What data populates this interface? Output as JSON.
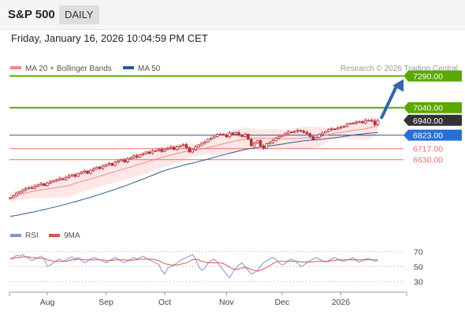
{
  "header": {
    "title": "S&P 500",
    "period_button": "DAILY",
    "datetime": "Friday, January 16, 2026 10:04:59 PM CET"
  },
  "colors": {
    "candle": "#b2333b",
    "ma20": "#f08a8a",
    "band_fill": "#fde3e3",
    "ma50": "#2f5a8e",
    "resistance": "#5aa800",
    "support": "#ef6c6c",
    "current": "#333333",
    "target": "#5aa800",
    "arrow": "#3366aa",
    "rsi": "#7f96d6",
    "rsi_ma": "#e05050",
    "grid_dotted": "#bbbbbb"
  },
  "chart_data": [
    {
      "type": "candlestick",
      "title": "",
      "legend": [
        {
          "label": "MA 20 + Bollinger Bands",
          "color": "#f08a8a"
        },
        {
          "label": "MA 50",
          "color": "#2f5a8e"
        }
      ],
      "copyright": "Research © 2026 Trading Central",
      "x_ticks": [
        "Aug",
        "Sep",
        "Oct",
        "Nov",
        "Dec",
        "2026"
      ],
      "ylim": [
        6150,
        7330
      ],
      "start_close": 6330,
      "closes": [
        6330,
        6345,
        6365,
        6375,
        6390,
        6400,
        6410,
        6405,
        6420,
        6430,
        6440,
        6425,
        6445,
        6455,
        6462,
        6470,
        6480,
        6472,
        6490,
        6500,
        6510,
        6498,
        6520,
        6530,
        6540,
        6522,
        6545,
        6556,
        6570,
        6560,
        6578,
        6590,
        6600,
        6585,
        6610,
        6620,
        6630,
        6612,
        6635,
        6645,
        6660,
        6650,
        6668,
        6675,
        6690,
        6680,
        6698,
        6700,
        6710,
        6695,
        6712,
        6720,
        6728,
        6710,
        6730,
        6740,
        6748,
        6725,
        6690,
        6710,
        6730,
        6745,
        6760,
        6770,
        6790,
        6800,
        6812,
        6830,
        6830,
        6825,
        6810,
        6840,
        6830,
        6842,
        6825,
        6812,
        6830,
        6790,
        6740,
        6760,
        6780,
        6738,
        6720,
        6755,
        6765,
        6780,
        6800,
        6812,
        6822,
        6835,
        6848,
        6846,
        6852,
        6860,
        6855,
        6845,
        6835,
        6812,
        6790,
        6805,
        6828,
        6840,
        6852,
        6866,
        6872,
        6870,
        6880,
        6885,
        6892,
        6910,
        6915,
        6918,
        6925,
        6930,
        6920,
        6938,
        6940,
        6935,
        6905,
        6940
      ],
      "levels": [
        {
          "value": 7290,
          "label": "7290.00",
          "kind": "target"
        },
        {
          "value": 7040,
          "label": "7040.00",
          "kind": "resistance"
        },
        {
          "value": 6940,
          "label": "6940.00",
          "kind": "current"
        },
        {
          "value": 6823,
          "label": "6823.00",
          "kind": "pivot"
        },
        {
          "value": 6717,
          "label": "6717.00",
          "kind": "support"
        },
        {
          "value": 6630,
          "label": "6630.00",
          "kind": "support"
        }
      ],
      "grid": false
    },
    {
      "type": "line",
      "title": "",
      "legend": [
        {
          "label": "RSI",
          "color": "#7f96d6"
        },
        {
          "label": "9MA",
          "color": "#e05050"
        }
      ],
      "ylim": [
        20,
        80
      ],
      "y_ticks": [
        70,
        50,
        30
      ],
      "rsi": [
        60,
        62,
        65,
        64,
        66,
        63,
        61,
        58,
        60,
        62,
        64,
        60,
        50,
        52,
        55,
        58,
        60,
        57,
        59,
        61,
        63,
        60,
        62,
        58,
        55,
        57,
        60,
        62,
        61,
        59,
        57,
        55,
        58,
        60,
        62,
        60,
        57,
        55,
        58,
        60,
        62,
        60,
        62,
        64,
        61,
        59,
        57,
        55,
        53,
        45,
        40,
        48,
        50,
        52,
        55,
        58,
        60,
        62,
        64,
        66,
        60,
        50,
        45,
        48,
        55,
        58,
        60,
        56,
        50,
        45,
        40,
        35,
        42,
        48,
        52,
        55,
        50,
        45,
        40,
        42,
        45,
        50,
        55,
        58,
        60,
        62,
        60,
        55,
        52,
        54,
        58,
        60,
        58,
        55,
        50,
        52,
        55,
        58,
        60,
        62,
        60,
        58,
        56,
        58,
        60,
        62,
        60,
        58,
        57,
        59,
        60,
        62,
        58,
        56,
        58,
        60,
        61,
        59,
        57,
        58
      ],
      "rsi_ma": [
        60,
        61,
        62,
        62,
        63,
        63,
        63,
        62,
        62,
        61,
        61,
        61,
        59,
        58,
        57,
        57,
        57,
        57,
        57,
        58,
        59,
        59,
        60,
        60,
        59,
        59,
        59,
        59,
        59,
        59,
        59,
        58,
        58,
        58,
        59,
        59,
        59,
        59,
        58,
        58,
        59,
        59,
        60,
        60,
        60,
        60,
        60,
        59,
        58,
        56,
        54,
        53,
        52,
        52,
        52,
        53,
        54,
        55,
        57,
        59,
        60,
        59,
        57,
        56,
        55,
        55,
        55,
        55,
        55,
        54,
        52,
        49,
        47,
        46,
        47,
        48,
        49,
        48,
        46,
        45,
        44,
        45,
        47,
        49,
        51,
        54,
        56,
        57,
        57,
        57,
        57,
        57,
        57,
        57,
        56,
        56,
        56,
        56,
        56,
        57,
        57,
        57,
        57,
        57,
        58,
        58,
        59,
        59,
        59,
        59,
        59,
        59,
        59,
        59,
        59,
        59,
        59,
        59,
        59,
        59
      ]
    }
  ]
}
